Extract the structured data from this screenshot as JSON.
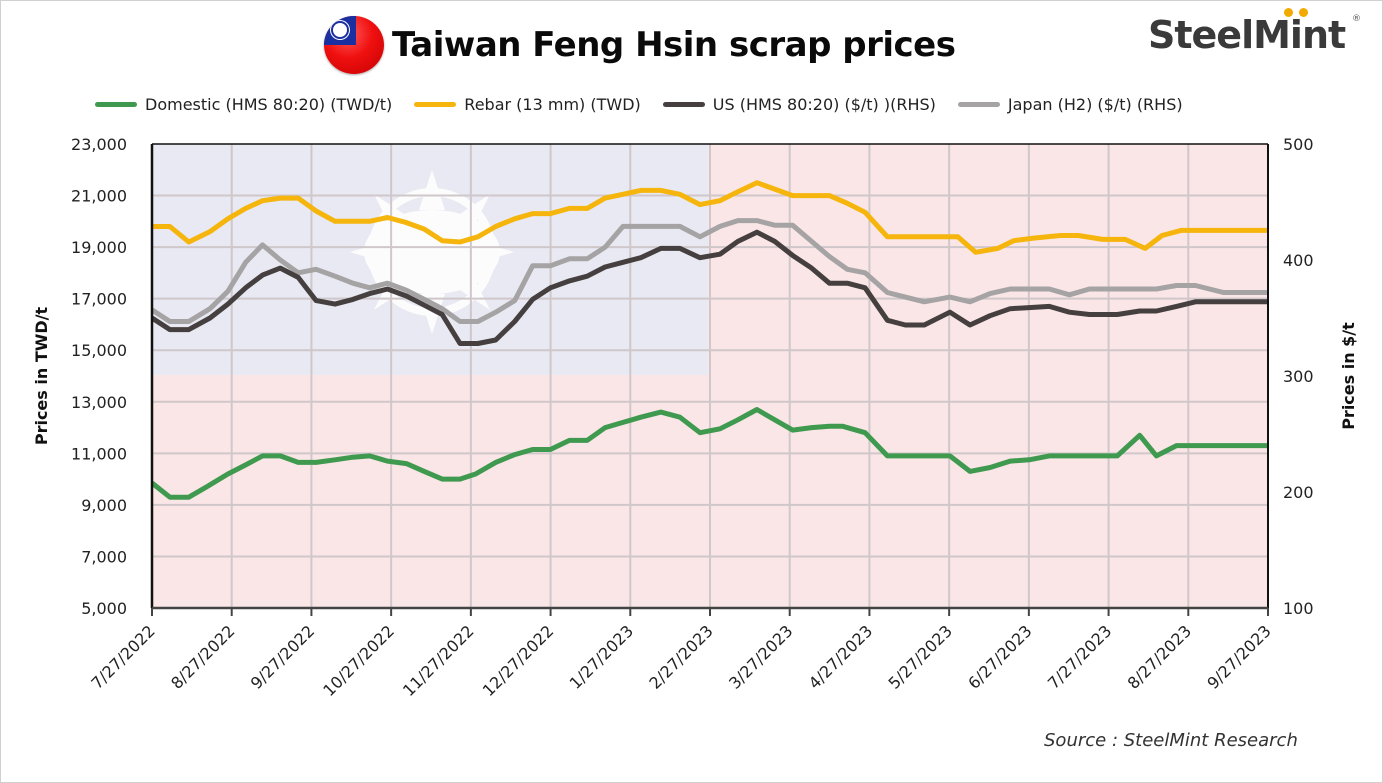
{
  "header": {
    "title": "Taiwan Feng Hsin scrap prices",
    "flag_icon": "taiwan-flag-icon",
    "logo_text": "SteelMint",
    "logo_registered": "®"
  },
  "legend": [
    {
      "label": "Domestic (HMS 80:20) (TWD/t)",
      "color": "#3f9a4f"
    },
    {
      "label": "Rebar (13 mm) (TWD)",
      "color": "#f5b50c"
    },
    {
      "label": "US (HMS 80:20) ($/t) )(RHS)",
      "color": "#45403f"
    },
    {
      "label": "Japan (H2) ($/t) (RHS)",
      "color": "#a5a3a4"
    }
  ],
  "footer": {
    "source": "Source : SteelMint Research"
  },
  "colors": {
    "domestic": "#3f9a4f",
    "rebar": "#f5b50c",
    "us": "#45403f",
    "japan": "#a5a3a4",
    "grid": "#cfc7ca",
    "bg_blue": "#e8e9f2",
    "bg_red": "#fbe6e7"
  },
  "chart_data": {
    "type": "line",
    "title": "Taiwan Feng Hsin scrap prices",
    "xlabel": "",
    "ylabel": "Prices in TWD/t",
    "y2label": "Prices in $/t",
    "ylim": [
      5000,
      23000
    ],
    "y2lim": [
      100,
      500
    ],
    "yticks": [
      "5,000",
      "7,000",
      "9,000",
      "11,000",
      "13,000",
      "15,000",
      "17,000",
      "19,000",
      "21,000",
      "23,000"
    ],
    "y2ticks": [
      "100",
      "200",
      "300",
      "400",
      "500"
    ],
    "xticks": [
      "7/27/2022",
      "8/27/2022",
      "9/27/2022",
      "10/27/2022",
      "11/27/2022",
      "12/27/2022",
      "1/27/2023",
      "2/27/2023",
      "3/27/2023",
      "4/27/2023",
      "5/27/2023",
      "6/27/2023",
      "7/27/2023",
      "8/27/2023",
      "9/27/2023"
    ],
    "grid": true,
    "legend_position": "top",
    "x_start": "7/27/2022",
    "x_end": "9/27/2023",
    "x_unit": "fraction of axis span",
    "series": [
      {
        "name": "Domestic (HMS 80:20) (TWD/t)",
        "axis": "left",
        "points": [
          [
            0,
            9850
          ],
          [
            0.016,
            9300
          ],
          [
            0.033,
            9300
          ],
          [
            0.049,
            9700
          ],
          [
            0.068,
            10200
          ],
          [
            0.084,
            10550
          ],
          [
            0.099,
            10900
          ],
          [
            0.115,
            10900
          ],
          [
            0.131,
            10650
          ],
          [
            0.147,
            10650
          ],
          [
            0.164,
            10750
          ],
          [
            0.18,
            10850
          ],
          [
            0.195,
            10900
          ],
          [
            0.211,
            10700
          ],
          [
            0.228,
            10600
          ],
          [
            0.244,
            10300
          ],
          [
            0.26,
            10000
          ],
          [
            0.276,
            10000
          ],
          [
            0.29,
            10200
          ],
          [
            0.308,
            10650
          ],
          [
            0.325,
            10950
          ],
          [
            0.341,
            11150
          ],
          [
            0.357,
            11150
          ],
          [
            0.374,
            11500
          ],
          [
            0.39,
            11500
          ],
          [
            0.406,
            12000
          ],
          [
            0.422,
            12200
          ],
          [
            0.438,
            12400
          ],
          [
            0.456,
            12600
          ],
          [
            0.473,
            12400
          ],
          [
            0.491,
            11800
          ],
          [
            0.509,
            11950
          ],
          [
            0.525,
            12300
          ],
          [
            0.542,
            12700
          ],
          [
            0.558,
            12300
          ],
          [
            0.574,
            11900
          ],
          [
            0.591,
            12000
          ],
          [
            0.607,
            12050
          ],
          [
            0.619,
            12050
          ],
          [
            0.639,
            11800
          ],
          [
            0.659,
            10900
          ],
          [
            0.675,
            10900
          ],
          [
            0.692,
            10900
          ],
          [
            0.715,
            10900
          ],
          [
            0.733,
            10300
          ],
          [
            0.751,
            10450
          ],
          [
            0.769,
            10700
          ],
          [
            0.786,
            10750
          ],
          [
            0.804,
            10900
          ],
          [
            0.822,
            10900
          ],
          [
            0.84,
            10900
          ],
          [
            0.865,
            10900
          ],
          [
            0.885,
            11700
          ],
          [
            0.9,
            10900
          ],
          [
            0.918,
            11300
          ],
          [
            0.935,
            11300
          ],
          [
            1,
            11300
          ]
        ]
      },
      {
        "name": "Rebar (13 mm) (TWD)",
        "axis": "left",
        "points": [
          [
            0,
            19800
          ],
          [
            0.016,
            19800
          ],
          [
            0.033,
            19200
          ],
          [
            0.052,
            19600
          ],
          [
            0.068,
            20100
          ],
          [
            0.084,
            20500
          ],
          [
            0.099,
            20800
          ],
          [
            0.115,
            20900
          ],
          [
            0.131,
            20900
          ],
          [
            0.147,
            20400
          ],
          [
            0.164,
            20000
          ],
          [
            0.18,
            20000
          ],
          [
            0.195,
            20000
          ],
          [
            0.211,
            20150
          ],
          [
            0.228,
            19950
          ],
          [
            0.244,
            19700
          ],
          [
            0.26,
            19250
          ],
          [
            0.276,
            19200
          ],
          [
            0.292,
            19400
          ],
          [
            0.308,
            19800
          ],
          [
            0.325,
            20100
          ],
          [
            0.341,
            20300
          ],
          [
            0.357,
            20300
          ],
          [
            0.374,
            20500
          ],
          [
            0.39,
            20500
          ],
          [
            0.406,
            20900
          ],
          [
            0.422,
            21050
          ],
          [
            0.438,
            21200
          ],
          [
            0.456,
            21200
          ],
          [
            0.473,
            21050
          ],
          [
            0.491,
            20650
          ],
          [
            0.509,
            20800
          ],
          [
            0.525,
            21150
          ],
          [
            0.542,
            21500
          ],
          [
            0.558,
            21250
          ],
          [
            0.574,
            21000
          ],
          [
            0.591,
            21000
          ],
          [
            0.607,
            21000
          ],
          [
            0.623,
            20700
          ],
          [
            0.639,
            20350
          ],
          [
            0.659,
            19400
          ],
          [
            0.675,
            19400
          ],
          [
            0.692,
            19400
          ],
          [
            0.722,
            19400
          ],
          [
            0.738,
            18800
          ],
          [
            0.758,
            18950
          ],
          [
            0.772,
            19250
          ],
          [
            0.79,
            19350
          ],
          [
            0.814,
            19450
          ],
          [
            0.83,
            19450
          ],
          [
            0.852,
            19300
          ],
          [
            0.872,
            19300
          ],
          [
            0.89,
            18950
          ],
          [
            0.905,
            19450
          ],
          [
            0.922,
            19650
          ],
          [
            0.938,
            19650
          ],
          [
            1,
            19650
          ]
        ]
      },
      {
        "name": "US (HMS 80:20) ($/t) )(RHS)",
        "axis": "right",
        "points": [
          [
            0,
            350
          ],
          [
            0.016,
            340
          ],
          [
            0.033,
            340
          ],
          [
            0.052,
            350
          ],
          [
            0.068,
            362
          ],
          [
            0.084,
            376
          ],
          [
            0.099,
            387
          ],
          [
            0.115,
            393
          ],
          [
            0.131,
            385
          ],
          [
            0.147,
            365
          ],
          [
            0.164,
            362
          ],
          [
            0.18,
            366
          ],
          [
            0.195,
            371
          ],
          [
            0.211,
            375
          ],
          [
            0.228,
            369
          ],
          [
            0.244,
            361
          ],
          [
            0.26,
            353
          ],
          [
            0.276,
            328
          ],
          [
            0.292,
            328
          ],
          [
            0.308,
            331
          ],
          [
            0.325,
            347
          ],
          [
            0.341,
            366
          ],
          [
            0.357,
            376
          ],
          [
            0.374,
            382
          ],
          [
            0.39,
            386
          ],
          [
            0.406,
            394
          ],
          [
            0.422,
            398
          ],
          [
            0.438,
            402
          ],
          [
            0.456,
            410
          ],
          [
            0.473,
            410
          ],
          [
            0.491,
            402
          ],
          [
            0.509,
            405
          ],
          [
            0.525,
            416
          ],
          [
            0.542,
            424
          ],
          [
            0.558,
            416
          ],
          [
            0.574,
            404
          ],
          [
            0.591,
            393
          ],
          [
            0.607,
            380
          ],
          [
            0.623,
            380
          ],
          [
            0.639,
            376
          ],
          [
            0.659,
            348
          ],
          [
            0.675,
            344
          ],
          [
            0.692,
            344
          ],
          [
            0.715,
            355
          ],
          [
            0.733,
            344
          ],
          [
            0.751,
            352
          ],
          [
            0.769,
            358
          ],
          [
            0.786,
            359
          ],
          [
            0.804,
            360
          ],
          [
            0.822,
            355
          ],
          [
            0.84,
            353
          ],
          [
            0.865,
            353
          ],
          [
            0.885,
            356
          ],
          [
            0.9,
            356
          ],
          [
            0.918,
            360
          ],
          [
            0.935,
            364
          ],
          [
            1,
            364
          ]
        ]
      },
      {
        "name": "Japan (H2) ($/t) (RHS)",
        "axis": "right",
        "points": [
          [
            0,
            357
          ],
          [
            0.016,
            347
          ],
          [
            0.033,
            347
          ],
          [
            0.052,
            358
          ],
          [
            0.068,
            373
          ],
          [
            0.084,
            398
          ],
          [
            0.099,
            413
          ],
          [
            0.115,
            400
          ],
          [
            0.131,
            389
          ],
          [
            0.147,
            392
          ],
          [
            0.164,
            386
          ],
          [
            0.18,
            380
          ],
          [
            0.195,
            376
          ],
          [
            0.211,
            380
          ],
          [
            0.228,
            374
          ],
          [
            0.244,
            366
          ],
          [
            0.26,
            358
          ],
          [
            0.276,
            347
          ],
          [
            0.292,
            347
          ],
          [
            0.308,
            355
          ],
          [
            0.325,
            365
          ],
          [
            0.341,
            395
          ],
          [
            0.357,
            395
          ],
          [
            0.374,
            401
          ],
          [
            0.39,
            401
          ],
          [
            0.406,
            411
          ],
          [
            0.422,
            429
          ],
          [
            0.438,
            429
          ],
          [
            0.456,
            429
          ],
          [
            0.473,
            429
          ],
          [
            0.491,
            420
          ],
          [
            0.509,
            429
          ],
          [
            0.525,
            434
          ],
          [
            0.542,
            434
          ],
          [
            0.558,
            430
          ],
          [
            0.574,
            430
          ],
          [
            0.591,
            416
          ],
          [
            0.607,
            403
          ],
          [
            0.623,
            392
          ],
          [
            0.639,
            389
          ],
          [
            0.659,
            372
          ],
          [
            0.675,
            368
          ],
          [
            0.692,
            364
          ],
          [
            0.715,
            368
          ],
          [
            0.733,
            364
          ],
          [
            0.751,
            371
          ],
          [
            0.769,
            375
          ],
          [
            0.786,
            375
          ],
          [
            0.804,
            375
          ],
          [
            0.822,
            370
          ],
          [
            0.84,
            375
          ],
          [
            0.865,
            375
          ],
          [
            0.885,
            375
          ],
          [
            0.9,
            375
          ],
          [
            0.918,
            378
          ],
          [
            0.935,
            378
          ],
          [
            0.96,
            372
          ],
          [
            1,
            372
          ]
        ]
      }
    ]
  }
}
